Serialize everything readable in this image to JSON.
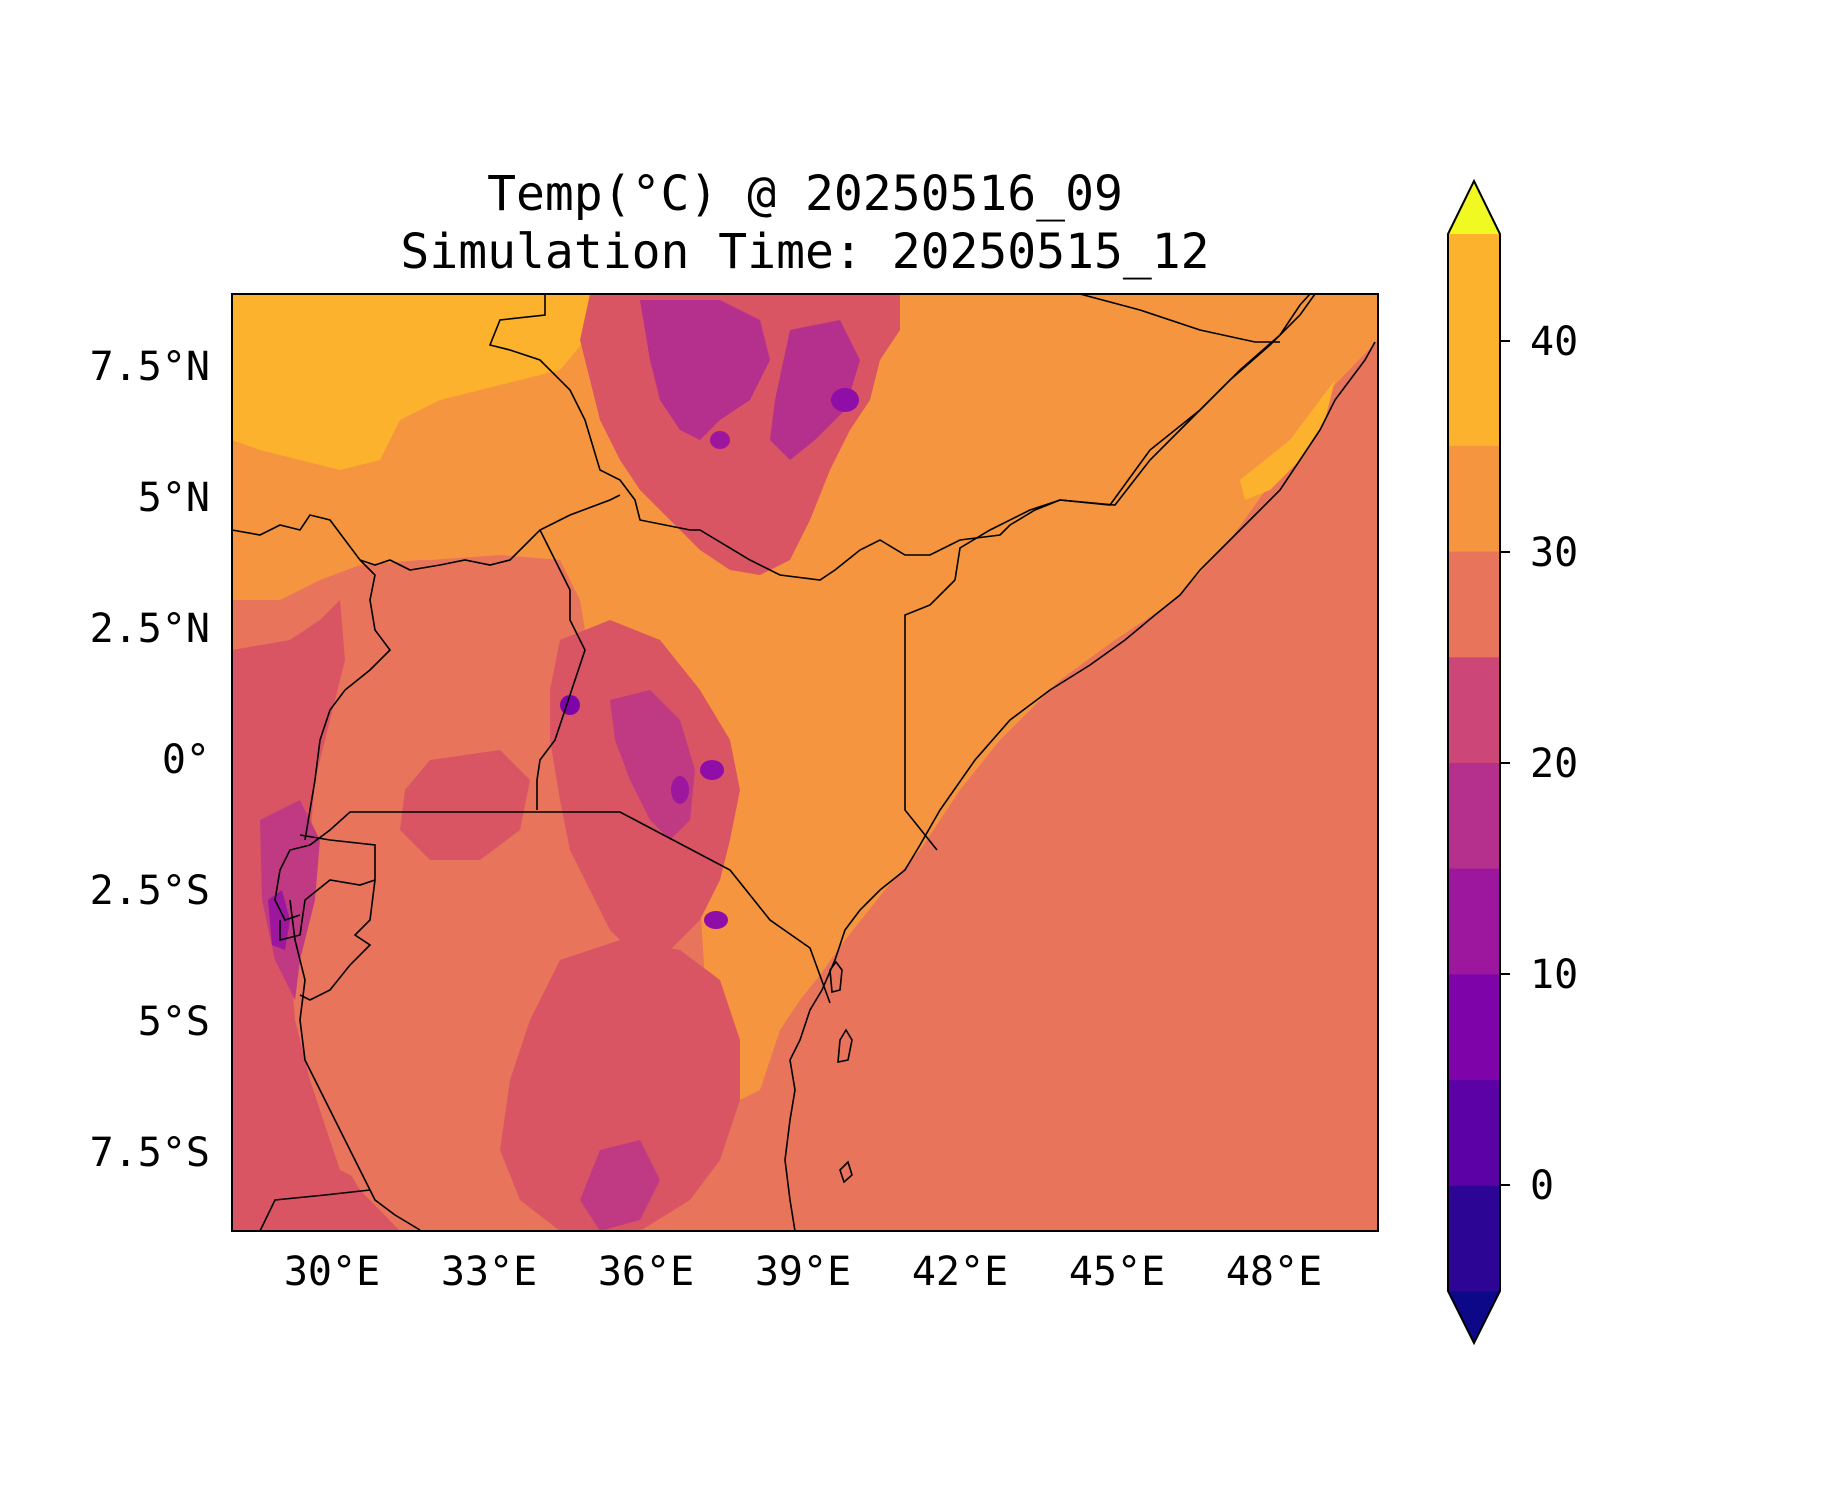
{
  "title": {
    "line1": "Temp(°C) @ 20250516_09",
    "line2": "Simulation Time: 20250515_12"
  },
  "map": {
    "region": "East Africa",
    "x_ticks": [
      "30°E",
      "33°E",
      "36°E",
      "39°E",
      "42°E",
      "45°E",
      "48°E"
    ],
    "y_ticks": [
      "7.5°N",
      "5°N",
      "2.5°N",
      "0°",
      "2.5°S",
      "5°S",
      "7.5°S"
    ],
    "lon_range": [
      28,
      50
    ],
    "lat_range": [
      -9,
      9
    ],
    "colors": {
      "ocean": "#e8745c",
      "lowland_hot": "#f6953f",
      "very_hot": "#fcb22d",
      "warm": "#d95563",
      "cool": "#c03a83",
      "cold": "#8e0ea7",
      "border": "#000000"
    }
  },
  "colorbar": {
    "ticks": [
      "40",
      "30",
      "20",
      "10",
      "0"
    ],
    "levels": [
      -5,
      0,
      5,
      10,
      15,
      20,
      25,
      30,
      35,
      40,
      45
    ],
    "colors": [
      "#0d0887",
      "#2c0594",
      "#5c01a6",
      "#7e03a8",
      "#9c179e",
      "#b52f8c",
      "#cc4778",
      "#e8745c",
      "#f6953f",
      "#fcb22d",
      "#f0f921"
    ],
    "extend": "both"
  }
}
